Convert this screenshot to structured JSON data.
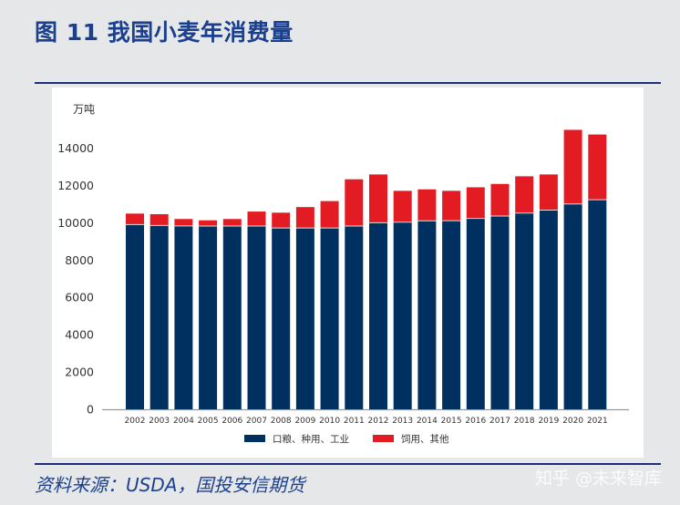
{
  "header": {
    "title": "图 11 我国小麦年消费量"
  },
  "footer": {
    "source": "资料来源：USDA，国投安信期货",
    "watermark": "知乎 @未来智库"
  },
  "chart_data": {
    "type": "bar",
    "stacked": true,
    "title": "",
    "ylabel": "万吨",
    "xlabel": "",
    "ylim": [
      0,
      14000
    ],
    "yticks": [
      0,
      2000,
      4000,
      6000,
      8000,
      10000,
      12000,
      14000
    ],
    "grid": false,
    "legend": "bottom",
    "categories": [
      "2002",
      "2003",
      "2004",
      "2005",
      "2006",
      "2007",
      "2008",
      "2009",
      "2010",
      "2011",
      "2012",
      "2013",
      "2014",
      "2015",
      "2016",
      "2017",
      "2018",
      "2019",
      "2020",
      "2021"
    ],
    "series": [
      {
        "name": "口粮、种用、工业",
        "color": "#00305f",
        "values": [
          9900,
          9850,
          9830,
          9820,
          9820,
          9820,
          9720,
          9720,
          9720,
          9820,
          10000,
          10030,
          10100,
          10110,
          10230,
          10360,
          10520,
          10680,
          11010,
          11230
        ]
      },
      {
        "name": "饲用、其他",
        "color": "#e31c23",
        "values": [
          590,
          610,
          370,
          310,
          380,
          780,
          820,
          1120,
          1440,
          2510,
          2590,
          1680,
          1690,
          1600,
          1670,
          1720,
          1970,
          1910,
          3970,
          3500
        ]
      }
    ]
  }
}
